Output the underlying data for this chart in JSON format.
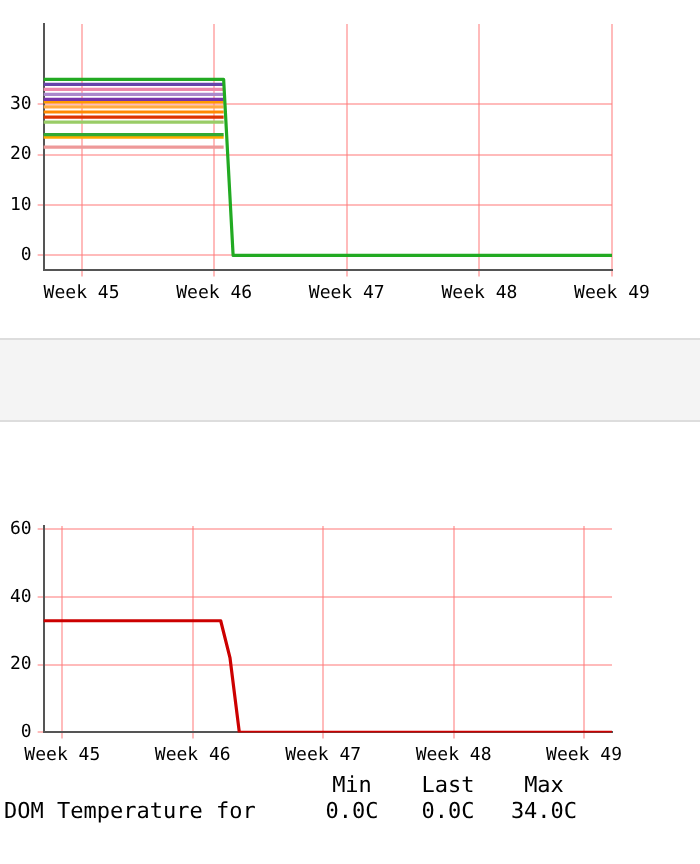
{
  "chart_data": [
    {
      "type": "line",
      "categories": [
        null,
        null,
        null,
        null,
        "Week 45",
        null,
        null,
        null,
        null,
        null,
        null,
        null,
        null,
        null,
        null,
        null,
        null,
        null,
        "Week 46",
        null,
        null,
        null,
        null,
        null,
        null,
        null,
        null,
        null,
        null,
        null,
        null,
        null,
        "Week 47",
        null,
        null,
        null,
        null,
        null,
        null,
        null,
        null,
        null,
        null,
        null,
        null,
        null,
        "Week 48",
        null,
        null,
        null,
        null,
        null,
        null,
        null,
        null,
        null,
        null,
        null,
        null,
        null,
        "Week 49"
      ],
      "ylim": [
        -3,
        46
      ],
      "yticks": [
        0,
        10,
        20,
        30
      ],
      "grid": true,
      "marker": "none",
      "series": [
        {
          "color": "#22aa22",
          "values": [
            35,
            35,
            35,
            35,
            35,
            35,
            35,
            35,
            35,
            35,
            35,
            35,
            35,
            35,
            35,
            35,
            35,
            35,
            35,
            35,
            0,
            0,
            0,
            0,
            0,
            0,
            0,
            0,
            0,
            0,
            0,
            0,
            0,
            0,
            0,
            0,
            0,
            0,
            0,
            0,
            0,
            0,
            0,
            0,
            0,
            0,
            0,
            0,
            0,
            0,
            0,
            0,
            0,
            0,
            0,
            0,
            0,
            0,
            0,
            0,
            0
          ]
        },
        {
          "color": "#6644aa",
          "values": [
            34,
            34,
            34,
            34,
            34,
            34,
            34,
            34,
            34,
            34,
            34,
            34,
            34,
            34,
            34,
            34,
            34,
            34,
            34,
            34,
            null,
            null,
            null,
            null,
            null,
            null,
            null,
            null,
            null,
            null,
            null,
            null,
            null,
            null,
            null,
            null,
            null,
            null,
            null,
            null,
            null,
            null,
            null,
            null,
            null,
            null,
            null,
            null,
            null,
            null,
            null,
            null,
            null,
            null,
            null,
            null,
            null,
            null,
            null,
            null,
            null
          ]
        },
        {
          "color": "#ee88aa",
          "values": [
            33,
            33,
            33,
            33,
            33,
            33,
            33,
            33,
            33,
            33,
            33,
            33,
            33,
            33,
            33,
            33,
            33,
            33,
            33,
            33,
            null,
            null,
            null,
            null,
            null,
            null,
            null,
            null,
            null,
            null,
            null,
            null,
            null,
            null,
            null,
            null,
            null,
            null,
            null,
            null,
            null,
            null,
            null,
            null,
            null,
            null,
            null,
            null,
            null,
            null,
            null,
            null,
            null,
            null,
            null,
            null,
            null,
            null,
            null,
            null,
            null
          ]
        },
        {
          "color": "#aa88cc",
          "values": [
            32,
            32,
            32,
            32,
            32,
            32,
            32,
            32,
            32,
            32,
            32,
            32,
            32,
            32,
            32,
            32,
            32,
            32,
            32,
            32,
            null,
            null,
            null,
            null,
            null,
            null,
            null,
            null,
            null,
            null,
            null,
            null,
            null,
            null,
            null,
            null,
            null,
            null,
            null,
            null,
            null,
            null,
            null,
            null,
            null,
            null,
            null,
            null,
            null,
            null,
            null,
            null,
            null,
            null,
            null,
            null,
            null,
            null,
            null,
            null,
            null
          ]
        },
        {
          "color": "#7733aa",
          "values": [
            31,
            31,
            31,
            31,
            31,
            31,
            31,
            31,
            31,
            31,
            31,
            31,
            31,
            31,
            31,
            31,
            31,
            31,
            31,
            31,
            null,
            null,
            null,
            null,
            null,
            null,
            null,
            null,
            null,
            null,
            null,
            null,
            null,
            null,
            null,
            null,
            null,
            null,
            null,
            null,
            null,
            null,
            null,
            null,
            null,
            null,
            null,
            null,
            null,
            null,
            null,
            null,
            null,
            null,
            null,
            null,
            null,
            null,
            null,
            null,
            null
          ]
        },
        {
          "color": "#ff9900",
          "values": [
            30.5,
            30.5,
            30.5,
            30.5,
            30.5,
            30.5,
            30.5,
            30.5,
            30.5,
            30.5,
            30.5,
            30.5,
            30.5,
            30.5,
            30.5,
            30.5,
            30.5,
            30.5,
            30.5,
            30.5,
            null,
            null,
            null,
            null,
            null,
            null,
            null,
            null,
            null,
            null,
            null,
            null,
            null,
            null,
            null,
            null,
            null,
            null,
            null,
            null,
            null,
            null,
            null,
            null,
            null,
            null,
            null,
            null,
            null,
            null,
            null,
            null,
            null,
            null,
            null,
            null,
            null,
            null,
            null,
            null,
            null
          ]
        },
        {
          "color": "#ffaa44",
          "values": [
            29.5,
            29.5,
            29.5,
            29.5,
            29.5,
            29.5,
            29.5,
            29.5,
            29.5,
            29.5,
            29.5,
            29.5,
            29.5,
            29.5,
            29.5,
            29.5,
            29.5,
            29.5,
            29.5,
            29.5,
            null,
            null,
            null,
            null,
            null,
            null,
            null,
            null,
            null,
            null,
            null,
            null,
            null,
            null,
            null,
            null,
            null,
            null,
            null,
            null,
            null,
            null,
            null,
            null,
            null,
            null,
            null,
            null,
            null,
            null,
            null,
            null,
            null,
            null,
            null,
            null,
            null,
            null,
            null,
            null,
            null
          ]
        },
        {
          "color": "#ff8800",
          "values": [
            28.5,
            28.5,
            28.5,
            28.5,
            28.5,
            28.5,
            28.5,
            28.5,
            28.5,
            28.5,
            28.5,
            28.5,
            28.5,
            28.5,
            28.5,
            28.5,
            28.5,
            28.5,
            28.5,
            28.5,
            null,
            null,
            null,
            null,
            null,
            null,
            null,
            null,
            null,
            null,
            null,
            null,
            null,
            null,
            null,
            null,
            null,
            null,
            null,
            null,
            null,
            null,
            null,
            null,
            null,
            null,
            null,
            null,
            null,
            null,
            null,
            null,
            null,
            null,
            null,
            null,
            null,
            null,
            null,
            null,
            null
          ]
        },
        {
          "color": "#dd3300",
          "values": [
            27.5,
            27.5,
            27.5,
            27.5,
            27.5,
            27.5,
            27.5,
            27.5,
            27.5,
            27.5,
            27.5,
            27.5,
            27.5,
            27.5,
            27.5,
            27.5,
            27.5,
            27.5,
            27.5,
            27.5,
            null,
            null,
            null,
            null,
            null,
            null,
            null,
            null,
            null,
            null,
            null,
            null,
            null,
            null,
            null,
            null,
            null,
            null,
            null,
            null,
            null,
            null,
            null,
            null,
            null,
            null,
            null,
            null,
            null,
            null,
            null,
            null,
            null,
            null,
            null,
            null,
            null,
            null,
            null,
            null,
            null
          ]
        },
        {
          "color": "#99cc66",
          "values": [
            26.5,
            26.5,
            26.5,
            26.5,
            26.5,
            26.5,
            26.5,
            26.5,
            26.5,
            26.5,
            26.5,
            26.5,
            26.5,
            26.5,
            26.5,
            26.5,
            26.5,
            26.5,
            26.5,
            26.5,
            null,
            null,
            null,
            null,
            null,
            null,
            null,
            null,
            null,
            null,
            null,
            null,
            null,
            null,
            null,
            null,
            null,
            null,
            null,
            null,
            null,
            null,
            null,
            null,
            null,
            null,
            null,
            null,
            null,
            null,
            null,
            null,
            null,
            null,
            null,
            null,
            null,
            null,
            null,
            null,
            null
          ]
        },
        {
          "color": "#33aa33",
          "values": [
            24,
            24,
            24,
            24,
            24,
            24,
            24,
            24,
            24,
            24,
            24,
            24,
            24,
            24,
            24,
            24,
            24,
            24,
            24,
            24,
            null,
            null,
            null,
            null,
            null,
            null,
            null,
            null,
            null,
            null,
            null,
            null,
            null,
            null,
            null,
            null,
            null,
            null,
            null,
            null,
            null,
            null,
            null,
            null,
            null,
            null,
            null,
            null,
            null,
            null,
            null,
            null,
            null,
            null,
            null,
            null,
            null,
            null,
            null,
            null,
            null
          ]
        },
        {
          "color": "#ffaa00",
          "values": [
            23.5,
            23.5,
            23.5,
            23.5,
            23.5,
            23.5,
            23.5,
            23.5,
            23.5,
            23.5,
            23.5,
            23.5,
            23.5,
            23.5,
            23.5,
            23.5,
            23.5,
            23.5,
            23.5,
            23.5,
            null,
            null,
            null,
            null,
            null,
            null,
            null,
            null,
            null,
            null,
            null,
            null,
            null,
            null,
            null,
            null,
            null,
            null,
            null,
            null,
            null,
            null,
            null,
            null,
            null,
            null,
            null,
            null,
            null,
            null,
            null,
            null,
            null,
            null,
            null,
            null,
            null,
            null,
            null,
            null,
            null
          ]
        },
        {
          "color": "#ee9999",
          "values": [
            21.5,
            21.5,
            21.5,
            21.5,
            21.5,
            21.5,
            21.5,
            21.5,
            21.5,
            21.5,
            21.5,
            21.5,
            21.5,
            21.5,
            21.5,
            21.5,
            21.5,
            21.5,
            21.5,
            21.5,
            null,
            null,
            null,
            null,
            null,
            null,
            null,
            null,
            null,
            null,
            null,
            null,
            null,
            null,
            null,
            null,
            null,
            null,
            null,
            null,
            null,
            null,
            null,
            null,
            null,
            null,
            null,
            null,
            null,
            null,
            null,
            null,
            null,
            null,
            null,
            null,
            null,
            null,
            null,
            null,
            null
          ]
        }
      ]
    },
    {
      "type": "line",
      "categories": [
        null,
        null,
        "Week 45",
        null,
        null,
        null,
        null,
        null,
        null,
        null,
        null,
        null,
        null,
        null,
        null,
        null,
        "Week 46",
        null,
        null,
        null,
        null,
        null,
        null,
        null,
        null,
        null,
        null,
        null,
        null,
        null,
        "Week 47",
        null,
        null,
        null,
        null,
        null,
        null,
        null,
        null,
        null,
        null,
        null,
        null,
        null,
        "Week 48",
        null,
        null,
        null,
        null,
        null,
        null,
        null,
        null,
        null,
        null,
        null,
        null,
        null,
        "Week 49",
        null,
        null,
        null
      ],
      "ylim": [
        0,
        61
      ],
      "yticks": [
        0,
        20,
        40,
        60
      ],
      "grid": true,
      "marker": "none",
      "annotations": [
        "DOM Temperature for",
        "Min",
        "0.0C",
        "Last",
        "0.0C",
        "Max",
        "34.0C"
      ],
      "series": [
        {
          "color": "#cc0000",
          "values": [
            33,
            33,
            33,
            33,
            33,
            33,
            33,
            33,
            33,
            33,
            33,
            33,
            33,
            33,
            33,
            33,
            33,
            33,
            33,
            33,
            22,
            0,
            0,
            0,
            0,
            0,
            0,
            0,
            0,
            0,
            0,
            0,
            0,
            0,
            0,
            0,
            0,
            0,
            0,
            0,
            0,
            0,
            0,
            0,
            0,
            0,
            0,
            0,
            0,
            0,
            0,
            0,
            0,
            0,
            0,
            0,
            0,
            0,
            0,
            0,
            0,
            0
          ]
        }
      ]
    }
  ]
}
